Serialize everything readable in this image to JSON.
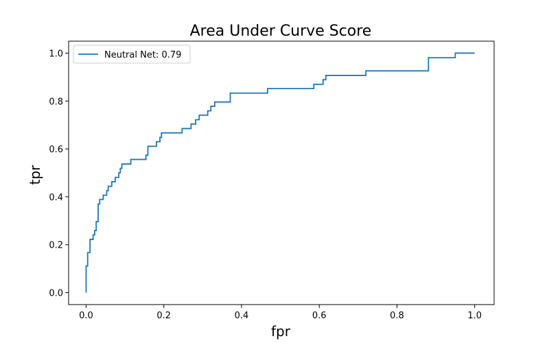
{
  "chart_data": {
    "type": "line",
    "title": "Area Under Curve Score",
    "xlabel": "fpr",
    "ylabel": "tpr",
    "xlim": [
      -0.045,
      1.05
    ],
    "ylim": [
      -0.05,
      1.05
    ],
    "xticks": [
      0.0,
      0.2,
      0.4,
      0.6,
      0.8,
      1.0
    ],
    "xtick_labels": [
      "0.0",
      "0.2",
      "0.4",
      "0.6",
      "0.8",
      "1.0"
    ],
    "yticks": [
      0.0,
      0.2,
      0.4,
      0.6,
      0.8,
      1.0
    ],
    "ytick_labels": [
      "0.0",
      "0.2",
      "0.4",
      "0.6",
      "0.8",
      "1.0"
    ],
    "grid": false,
    "legend_position": "top-left",
    "series": [
      {
        "name": "Neutral Net: 0.79",
        "color": "#1f77b4",
        "step": true,
        "x": [
          0.0,
          0.0,
          0.004,
          0.004,
          0.01,
          0.01,
          0.018,
          0.018,
          0.022,
          0.022,
          0.026,
          0.026,
          0.031,
          0.031,
          0.035,
          0.035,
          0.044,
          0.044,
          0.053,
          0.053,
          0.057,
          0.057,
          0.066,
          0.066,
          0.075,
          0.075,
          0.084,
          0.084,
          0.088,
          0.088,
          0.092,
          0.092,
          0.115,
          0.115,
          0.154,
          0.154,
          0.159,
          0.159,
          0.181,
          0.181,
          0.19,
          0.19,
          0.194,
          0.194,
          0.247,
          0.247,
          0.27,
          0.27,
          0.282,
          0.282,
          0.291,
          0.291,
          0.313,
          0.313,
          0.321,
          0.321,
          0.331,
          0.331,
          0.371,
          0.371,
          0.467,
          0.467,
          0.586,
          0.586,
          0.61,
          0.61,
          0.617,
          0.617,
          0.72,
          0.72,
          0.881,
          0.881,
          0.95,
          0.95,
          1.0
        ],
        "y": [
          0.0,
          0.111,
          0.111,
          0.167,
          0.167,
          0.222,
          0.222,
          0.241,
          0.241,
          0.259,
          0.259,
          0.296,
          0.296,
          0.37,
          0.37,
          0.389,
          0.389,
          0.407,
          0.407,
          0.426,
          0.426,
          0.444,
          0.444,
          0.463,
          0.463,
          0.481,
          0.481,
          0.5,
          0.5,
          0.519,
          0.519,
          0.537,
          0.537,
          0.556,
          0.556,
          0.574,
          0.574,
          0.611,
          0.611,
          0.63,
          0.63,
          0.648,
          0.648,
          0.667,
          0.667,
          0.685,
          0.685,
          0.704,
          0.704,
          0.722,
          0.722,
          0.741,
          0.741,
          0.759,
          0.759,
          0.778,
          0.778,
          0.796,
          0.796,
          0.833,
          0.833,
          0.852,
          0.852,
          0.87,
          0.87,
          0.889,
          0.889,
          0.907,
          0.907,
          0.926,
          0.926,
          0.981,
          0.981,
          1.0,
          1.0
        ]
      }
    ]
  }
}
